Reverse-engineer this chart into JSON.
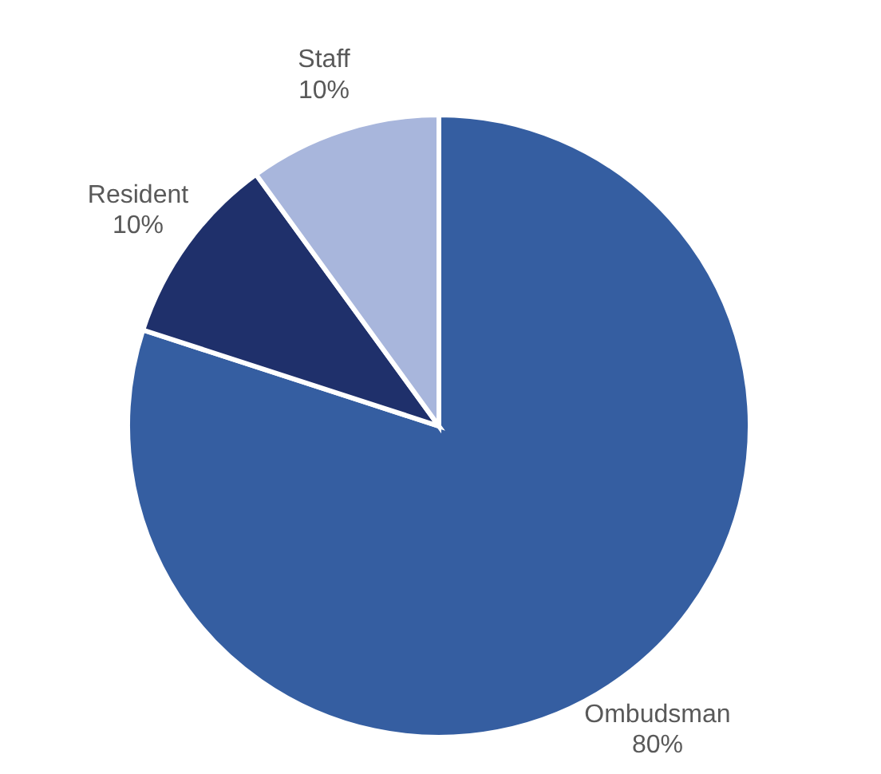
{
  "chart_data": {
    "type": "pie",
    "categories": [
      "Ombudsman",
      "Resident",
      "Staff"
    ],
    "values": [
      80,
      10,
      10
    ],
    "value_labels": [
      "80%",
      "10%",
      "10%"
    ],
    "colors": [
      "#355ea1",
      "#1f306b",
      "#a8b6dc"
    ],
    "legend": false
  }
}
